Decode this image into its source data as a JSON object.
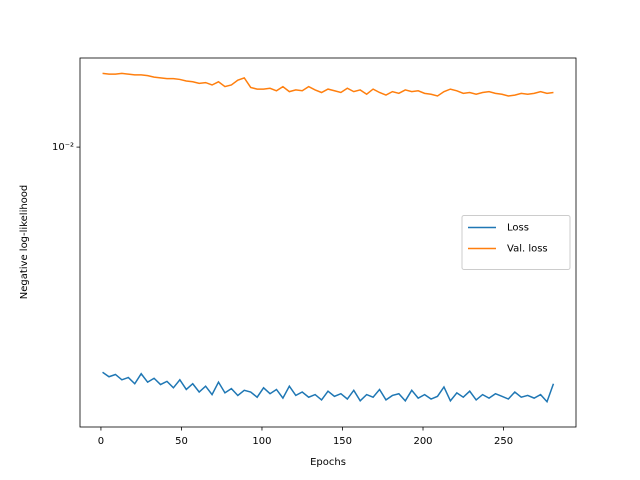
{
  "chart_data": {
    "type": "line",
    "xlabel": "Epochs",
    "ylabel": "Negative log-likelihood",
    "x": [
      1,
      5,
      9,
      13,
      17,
      21,
      25,
      29,
      33,
      37,
      41,
      45,
      49,
      53,
      57,
      61,
      65,
      69,
      73,
      77,
      81,
      85,
      89,
      93,
      97,
      101,
      105,
      109,
      113,
      117,
      121,
      125,
      129,
      133,
      137,
      141,
      145,
      149,
      153,
      157,
      161,
      165,
      169,
      173,
      177,
      181,
      185,
      189,
      193,
      197,
      201,
      205,
      209,
      213,
      217,
      221,
      225,
      229,
      233,
      237,
      241,
      245,
      249,
      253,
      257,
      261,
      265,
      269,
      273,
      277,
      281
    ],
    "series": [
      {
        "name": "Loss",
        "color": "#1f77b4",
        "values": [
          0.00178,
          0.00172,
          0.00175,
          0.00168,
          0.00171,
          0.00163,
          0.00176,
          0.00165,
          0.0017,
          0.00162,
          0.00166,
          0.00158,
          0.00168,
          0.00156,
          0.00163,
          0.00153,
          0.0016,
          0.0015,
          0.00165,
          0.00152,
          0.00157,
          0.00149,
          0.00155,
          0.00153,
          0.00147,
          0.00158,
          0.00151,
          0.00156,
          0.00146,
          0.0016,
          0.00149,
          0.00153,
          0.00147,
          0.0015,
          0.00144,
          0.00154,
          0.00148,
          0.00151,
          0.00145,
          0.00155,
          0.00143,
          0.0015,
          0.00147,
          0.00156,
          0.00144,
          0.00149,
          0.00151,
          0.00143,
          0.00155,
          0.00146,
          0.0015,
          0.00145,
          0.00148,
          0.00159,
          0.00143,
          0.00152,
          0.00147,
          0.00154,
          0.00144,
          0.0015,
          0.00146,
          0.00151,
          0.00148,
          0.00145,
          0.00153,
          0.00147,
          0.00149,
          0.00146,
          0.0015,
          0.00142,
          0.00163
        ]
      },
      {
        "name": "Val. loss",
        "color": "#ff7f0e",
        "values": [
          0.0176,
          0.0175,
          0.0175,
          0.0176,
          0.0175,
          0.0174,
          0.0174,
          0.0173,
          0.0171,
          0.017,
          0.0169,
          0.0169,
          0.0168,
          0.0166,
          0.0165,
          0.0163,
          0.0164,
          0.0161,
          0.0165,
          0.0159,
          0.0161,
          0.0167,
          0.017,
          0.0158,
          0.0156,
          0.0156,
          0.0157,
          0.0154,
          0.0159,
          0.0153,
          0.0155,
          0.0154,
          0.0159,
          0.0155,
          0.0152,
          0.0156,
          0.0154,
          0.0152,
          0.0157,
          0.0153,
          0.0155,
          0.015,
          0.0156,
          0.0152,
          0.0149,
          0.0153,
          0.0151,
          0.0155,
          0.0153,
          0.0154,
          0.0151,
          0.015,
          0.0148,
          0.0153,
          0.0156,
          0.0154,
          0.0151,
          0.0152,
          0.015,
          0.0152,
          0.0153,
          0.0151,
          0.015,
          0.0148,
          0.0149,
          0.0151,
          0.015,
          0.0151,
          0.0153,
          0.0151,
          0.0152
        ]
      }
    ],
    "xlim": [
      -13,
      295
    ],
    "xticks": [
      0,
      50,
      100,
      150,
      200,
      250
    ],
    "ylim": [
      0.00117,
      0.0198
    ],
    "yscale": "log",
    "yticks": [
      {
        "value": 0.01,
        "label": "10⁻²"
      }
    ],
    "legend": "center right"
  }
}
